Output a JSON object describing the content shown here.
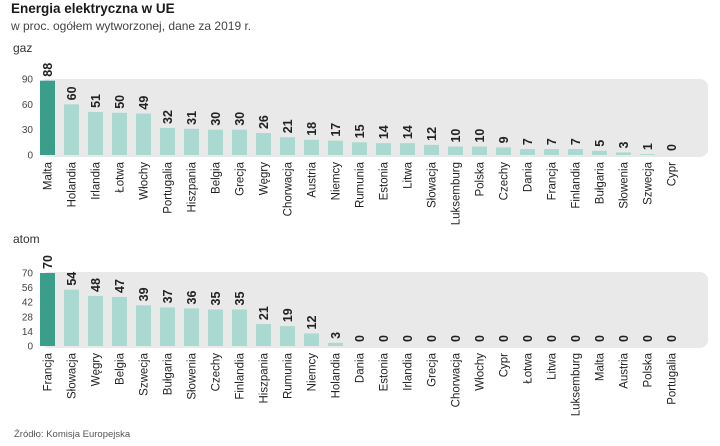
{
  "title": "Energia elektryczna w UE",
  "subtitle": "w proc. ogółem wytworzonej, dane za 2019 r.",
  "source": "Źródło: Komisja Europejska",
  "colors": {
    "highlight": "#3a9e8b",
    "bar": "#a9d9d0",
    "band": "#e9e9ea",
    "text": "#222222"
  },
  "chart_data": [
    {
      "type": "bar",
      "title": "gaz",
      "yticks": [
        0,
        30,
        60,
        90
      ],
      "ylim": [
        0,
        90
      ],
      "categories": [
        "Malta",
        "Holandia",
        "Irlandia",
        "Łotwa",
        "Włochy",
        "Portugalia",
        "Hiszpania",
        "Belgia",
        "Grecja",
        "Węgry",
        "Chorwacja",
        "Austria",
        "Niemcy",
        "Rumunia",
        "Estonia",
        "Litwa",
        "Słowacja",
        "Luksemburg",
        "Polska",
        "Czechy",
        "Dania",
        "Francja",
        "Finlandia",
        "Bułgaria",
        "Słowenia",
        "Szwecja",
        "Cypr"
      ],
      "values": [
        88,
        60,
        51,
        50,
        49,
        32,
        31,
        30,
        30,
        26,
        21,
        18,
        17,
        15,
        14,
        14,
        12,
        10,
        10,
        9,
        7,
        7,
        7,
        5,
        3,
        1,
        0
      ]
    },
    {
      "type": "bar",
      "title": "atom",
      "yticks": [
        0,
        14,
        28,
        42,
        56,
        70
      ],
      "ylim": [
        0,
        70
      ],
      "categories": [
        "Francja",
        "Słowacja",
        "Węgry",
        "Belgia",
        "Szwecja",
        "Bułgaria",
        "Słowenia",
        "Czechy",
        "Finlandia",
        "Hiszpania",
        "Rumunia",
        "Niemcy",
        "Holandia",
        "Dania",
        "Estonia",
        "Irlandia",
        "Grecja",
        "Chorwacja",
        "Włochy",
        "Cypr",
        "Łotwa",
        "Litwa",
        "Luksemburg",
        "Malta",
        "Austria",
        "Polska",
        "Portugalia"
      ],
      "values": [
        70,
        54,
        48,
        47,
        39,
        37,
        36,
        35,
        35,
        21,
        19,
        12,
        3,
        0,
        0,
        0,
        0,
        0,
        0,
        0,
        0,
        0,
        0,
        0,
        0,
        0,
        0
      ]
    }
  ]
}
